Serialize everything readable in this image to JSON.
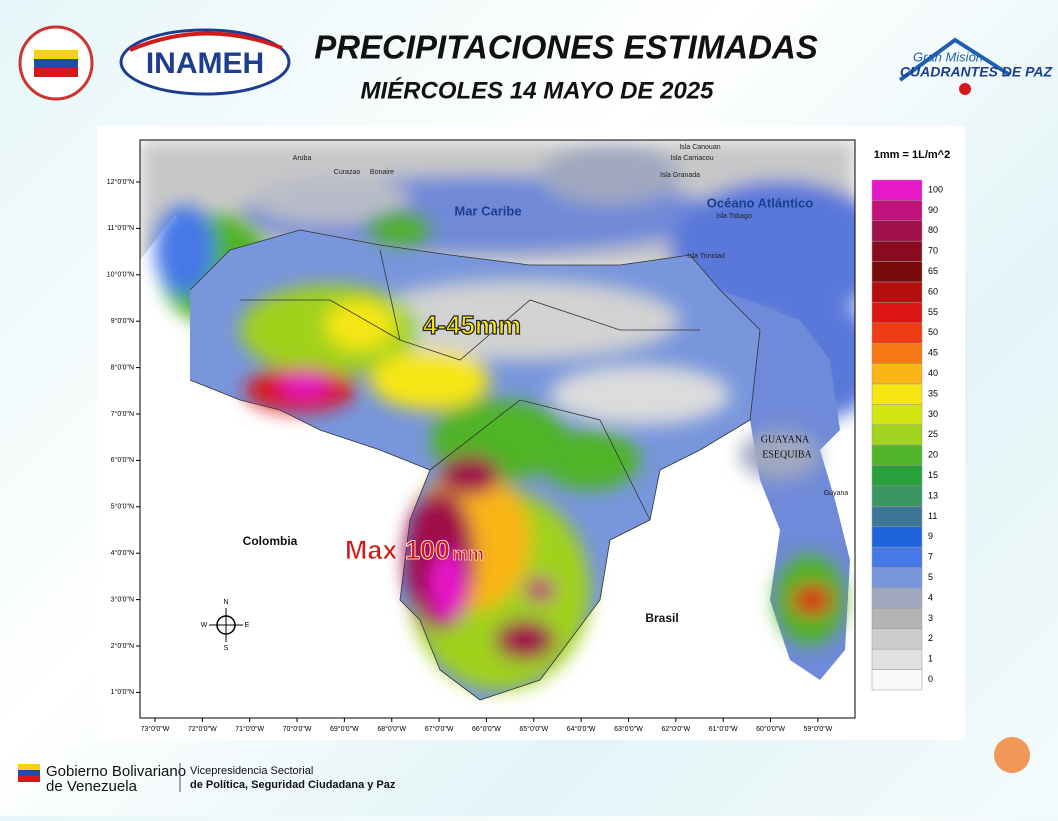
{
  "header": {
    "title": "PRECIPITACIONES ESTIMADAS",
    "subtitle": "MIÉRCOLES 14 MAYO DE 2025",
    "logo_left": "INAMEH",
    "logo_right_top": "Gran Misión",
    "logo_right_bottom": "CUADRANTES DE PAZ"
  },
  "map": {
    "unit": "1mm = 1L/m^2",
    "legend": [
      {
        "value": 100,
        "color": "#e619c8"
      },
      {
        "value": 90,
        "color": "#c0127a"
      },
      {
        "value": 80,
        "color": "#a0104a"
      },
      {
        "value": 70,
        "color": "#8a0a20"
      },
      {
        "value": 65,
        "color": "#7a0a0a"
      },
      {
        "value": 60,
        "color": "#b40e0e"
      },
      {
        "value": 55,
        "color": "#dc1414"
      },
      {
        "value": 50,
        "color": "#f03c14"
      },
      {
        "value": 45,
        "color": "#f57814"
      },
      {
        "value": 40,
        "color": "#fab414"
      },
      {
        "value": 35,
        "color": "#f5e614"
      },
      {
        "value": 30,
        "color": "#d2e614"
      },
      {
        "value": 25,
        "color": "#a0d21e"
      },
      {
        "value": 20,
        "color": "#50b428"
      },
      {
        "value": 15,
        "color": "#28a03c"
      },
      {
        "value": 13,
        "color": "#3c9664"
      },
      {
        "value": 11,
        "color": "#3c7896"
      },
      {
        "value": 9,
        "color": "#1e64dc"
      },
      {
        "value": 7,
        "color": "#4678e6"
      },
      {
        "value": 5,
        "color": "#7896dc"
      },
      {
        "value": 4,
        "color": "#a0a8c0"
      },
      {
        "value": 3,
        "color": "#b4b4b4"
      },
      {
        "value": 2,
        "color": "#cdcdcd"
      },
      {
        "value": 1,
        "color": "#e1e1e1"
      },
      {
        "value": 0,
        "color": "#fafafa"
      }
    ],
    "lat_ticks": [
      "12°0'0\"N",
      "11°0'0\"N",
      "10°0'0\"N",
      "9°0'0\"N",
      "8°0'0\"N",
      "7°0'0\"N",
      "6°0'0\"N",
      "5°0'0\"N",
      "4°0'0\"N",
      "3°0'0\"N",
      "2°0'0\"N",
      "1°0'0\"N"
    ],
    "lon_ticks": [
      "73°0'0\"W",
      "72°0'0\"W",
      "71°0'0\"W",
      "70°0'0\"W",
      "69°0'0\"W",
      "68°0'0\"W",
      "67°0'0\"W",
      "66°0'0\"W",
      "65°0'0\"W",
      "64°0'0\"W",
      "63°0'0\"W",
      "62°0'0\"W",
      "61°0'0\"W",
      "60°0'0\"W",
      "59°0'0\"W"
    ],
    "labels": {
      "caribe": "Mar Caribe",
      "atlantico": "Océano Atlántico",
      "range": "4-45mm",
      "max_a": "Max 100",
      "max_b": "mm",
      "colombia": "Colombia",
      "brasil": "Brasil",
      "esequiba_1": "GUAYANA",
      "esequiba_2": "ESEQUIBA",
      "guyana": "Guyana",
      "aruba": "Aruba",
      "curazao": "Curazao",
      "bonaire": "Bonaire",
      "tobago": "Isla Tobago",
      "trinidad": "Isla Trinidad",
      "granada": "Isla Granada",
      "carriacou": "Isla Carriacou",
      "canouan": "Isla Canouan"
    },
    "compass": {
      "n": "N",
      "s": "S",
      "e": "E",
      "w": "W"
    }
  },
  "footer": {
    "gob_1": "Gobierno Bolivariano",
    "gob_2": "de Venezuela",
    "vice_1": "Vicepresidencia Sectorial",
    "vice_2": "de Política, Seguridad Ciudadana y Paz"
  }
}
